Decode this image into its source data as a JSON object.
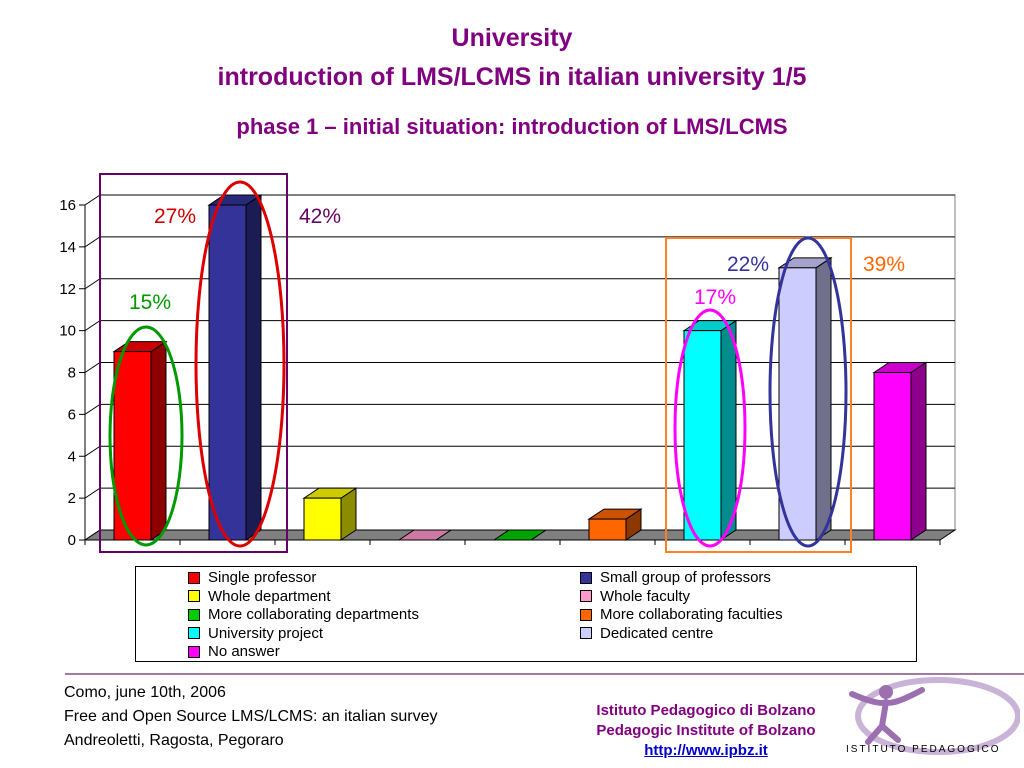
{
  "header": {
    "title": "University",
    "subtitle": "introduction of LMS/LCMS in italian university 1/5",
    "phase": "phase 1 – initial situation: introduction of LMS/LCMS"
  },
  "chart_data": {
    "type": "bar",
    "categories": [
      "Single professor",
      "Small group of professors",
      "Whole department",
      "Whole faculty",
      "More collaborating departments",
      "More collaborating faculties",
      "University project",
      "Dedicated centre",
      "No answer"
    ],
    "values": [
      9,
      16,
      2,
      0,
      0,
      1,
      10,
      13,
      8
    ],
    "colors": [
      "#ff0000",
      "#333399",
      "#ffff00",
      "#ff99cc",
      "#00cc00",
      "#ff6600",
      "#00ffff",
      "#ccccff",
      "#ff00ff"
    ],
    "ylim": [
      0,
      16
    ],
    "yticks": [
      0,
      2,
      4,
      6,
      8,
      10,
      12,
      14,
      16
    ],
    "grid": true,
    "legend_position": "bottom",
    "annotations": [
      {
        "text": "27%",
        "color": "#cc0000"
      },
      {
        "text": "42%",
        "color": "#660066"
      },
      {
        "text": "15%",
        "color": "#009900"
      },
      {
        "text": "22%",
        "color": "#333399"
      },
      {
        "text": "39%",
        "color": "#ff6600"
      },
      {
        "text": "17%",
        "color": "#ff00ff"
      }
    ]
  },
  "legend": {
    "items": [
      "Single professor",
      "Small group of professors",
      "Whole department",
      "Whole faculty",
      "More collaborating departments",
      "More collaborating faculties",
      "University project",
      "Dedicated centre",
      "No answer"
    ]
  },
  "footer": {
    "left": [
      "Como, june 10th, 2006",
      "Free and Open Source LMS/LCMS: an italian survey",
      "Andreoletti, Ragosta, Pegoraro"
    ],
    "institute_it": "Istituto Pedagogico di Bolzano",
    "institute_en": "Pedagogic Institute of Bolzano",
    "url": "http://www.ipbz.it",
    "logo_text": "ISTITUTO PEDAGOGICO"
  }
}
